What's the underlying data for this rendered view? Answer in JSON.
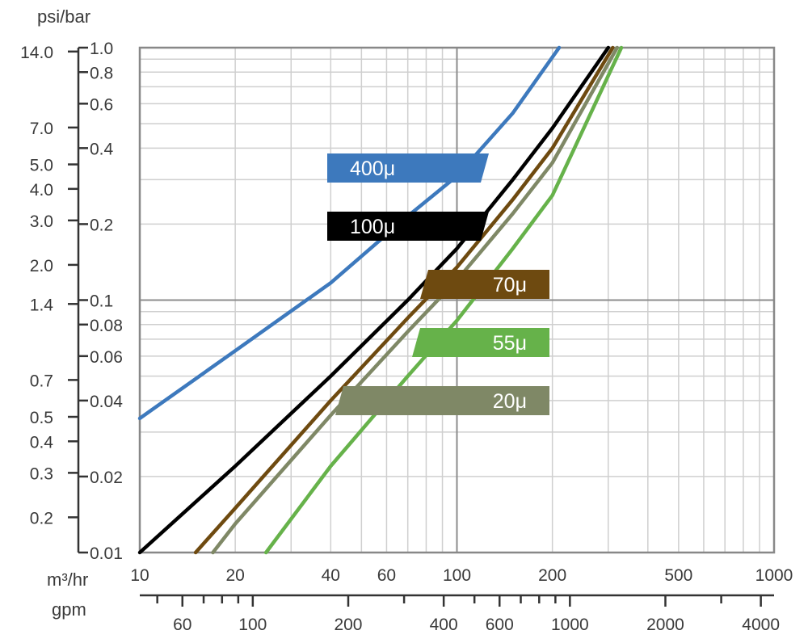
{
  "chart_data": {
    "type": "line",
    "x_scale": "log",
    "y_scale": "log",
    "grid": true,
    "x_label_m3hr": "m³/hr",
    "x_label_gpm": "gpm",
    "y_label_psibar": "psi/bar",
    "xlim_m3hr": [
      10,
      1000
    ],
    "ylim_bar": [
      0.01,
      1.0
    ],
    "x_ticks_m3hr": [
      "10",
      "20",
      "40",
      "60",
      "100",
      "200",
      "500",
      "1000"
    ],
    "x_ticks_gpm": [
      "60",
      "100",
      "200",
      "400",
      "600",
      "1000",
      "2000",
      "4000"
    ],
    "y_ticks_bar": [
      "0.01",
      "0.02",
      "0.04",
      "0.06",
      "0.08",
      "0.1",
      "0.2",
      "0.4",
      "0.6",
      "0.8",
      "1.0"
    ],
    "y_ticks_psi": [
      "0.2",
      "0.3",
      "0.4",
      "0.5",
      "0.7",
      "1.4",
      "2.0",
      "3.0",
      "4.0",
      "5.0",
      "7.0",
      "14.0"
    ],
    "series": [
      {
        "name": "400μ",
        "color": "#3d79bd",
        "x": [
          10,
          20,
          40,
          70,
          100,
          150,
          210
        ],
        "y": [
          0.034,
          0.063,
          0.117,
          0.215,
          0.31,
          0.55,
          1.0
        ]
      },
      {
        "name": "100μ",
        "color": "#000000",
        "x": [
          10,
          20,
          40,
          70,
          100,
          150,
          200,
          300
        ],
        "y": [
          0.01,
          0.022,
          0.05,
          0.1,
          0.16,
          0.3,
          0.48,
          1.0
        ]
      },
      {
        "name": "70μ",
        "color": "#6e4a10",
        "x": [
          15,
          20,
          40,
          70,
          100,
          150,
          200,
          310
        ],
        "y": [
          0.01,
          0.015,
          0.04,
          0.085,
          0.135,
          0.25,
          0.4,
          1.0
        ]
      },
      {
        "name": "20μ",
        "color": "#7f8866",
        "x": [
          17,
          20,
          40,
          70,
          100,
          150,
          200,
          320
        ],
        "y": [
          0.01,
          0.013,
          0.035,
          0.075,
          0.12,
          0.22,
          0.35,
          1.0
        ]
      },
      {
        "name": "55μ",
        "color": "#66b24a",
        "x": [
          25,
          40,
          70,
          100,
          150,
          200,
          330
        ],
        "y": [
          0.01,
          0.022,
          0.05,
          0.083,
          0.16,
          0.26,
          1.0
        ]
      }
    ]
  }
}
